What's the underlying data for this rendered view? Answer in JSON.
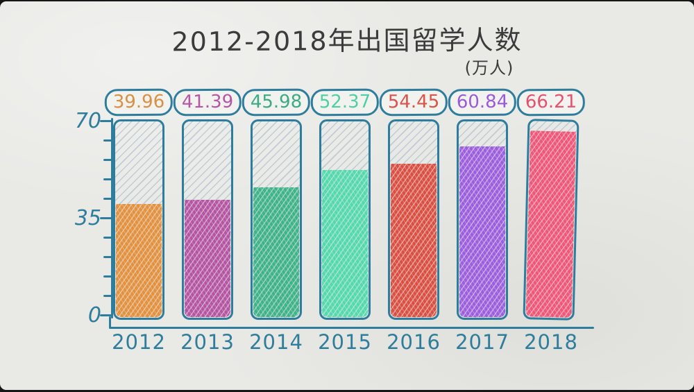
{
  "title": "2012-2018年出国留学人数",
  "unit_label": "(万人)",
  "axis": {
    "color": "#2e7d9c",
    "labels": [
      "70",
      "35",
      "0"
    ]
  },
  "chart_data": {
    "type": "bar",
    "title": "2012-2018年出国留学人数",
    "ylabel": "万人",
    "xlabel": "",
    "categories": [
      "2012",
      "2013",
      "2014",
      "2015",
      "2016",
      "2017",
      "2018"
    ],
    "values": [
      39.96,
      41.39,
      45.98,
      52.37,
      54.45,
      60.84,
      66.21
    ],
    "colors": [
      "#e3913f",
      "#b554a3",
      "#3eb389",
      "#53d9ad",
      "#da4f41",
      "#9c5ede",
      "#ef5678"
    ],
    "value_label_colors": [
      "#d98f44",
      "#b557a6",
      "#3cab85",
      "#4fcfa6",
      "#d9544a",
      "#9a5bdb",
      "#e8506f"
    ],
    "ylim": [
      0,
      70
    ],
    "y_major_ticks": [
      0,
      35,
      70
    ],
    "y_minor_step": 7,
    "grid": false,
    "legend_position": "none",
    "style": "hand-drawn sketch on paper"
  }
}
